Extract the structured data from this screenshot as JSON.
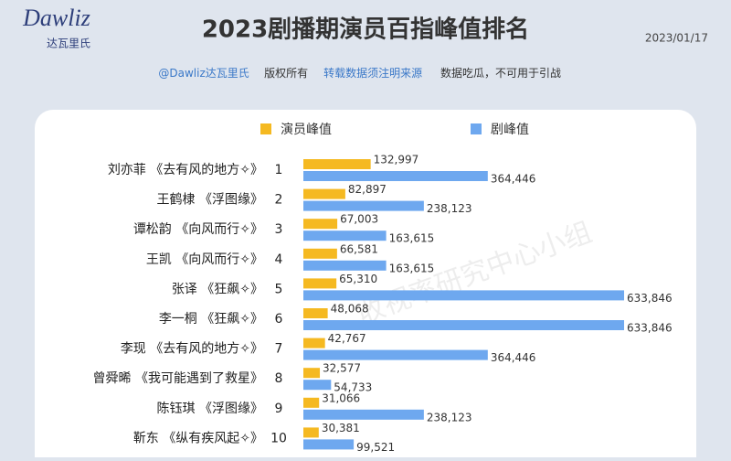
{
  "header": {
    "logo": "Dawliz",
    "logo_sub": "达瓦里氏",
    "date": "2023/01/17",
    "notice_parts": [
      "@Dawliz达瓦里氏",
      "版权所有",
      "转载数据须注明来源",
      "数据吃瓜，不可用于引战"
    ],
    "watermark": "收视率研究中心小组"
  },
  "chart_data": {
    "type": "bar",
    "orientation": "horizontal",
    "title": "2023剧播期演员百指峰值排名",
    "categories": [
      "刘亦菲 《去有风的地方✧》",
      "王鹤棣 《浮图缘》",
      "谭松韵 《向风而行✧》",
      "王凯 《向风而行✧》",
      "张译 《狂飙✧》",
      "李一桐 《狂飙✧》",
      "李现 《去有风的地方✧》",
      "曾舜晞 《我可能遇到了救星》",
      "陈钰琪 《浮图缘》",
      "靳东 《纵有疾风起✧》"
    ],
    "ranks": [
      1,
      2,
      3,
      4,
      5,
      6,
      7,
      8,
      9,
      10
    ],
    "series": [
      {
        "name": "演员峰值",
        "color": "#f5b921",
        "values": [
          132997,
          82897,
          67003,
          66581,
          65310,
          48068,
          42767,
          32577,
          31066,
          30381
        ],
        "value_labels": [
          "132,997",
          "82,897",
          "67,003",
          "66,581",
          "65,310",
          "48,068",
          "42,767",
          "32,577",
          "31,066",
          "30,381"
        ]
      },
      {
        "name": "剧峰值",
        "color": "#6ea8ef",
        "values": [
          364446,
          238123,
          163615,
          163615,
          633846,
          633846,
          364446,
          54733,
          238123,
          99521
        ],
        "value_labels": [
          "364,446",
          "238,123",
          "163,615",
          "163,615",
          "633,846",
          "633,846",
          "364,446",
          "54,733",
          "238,123",
          "99,521"
        ]
      }
    ]
  }
}
